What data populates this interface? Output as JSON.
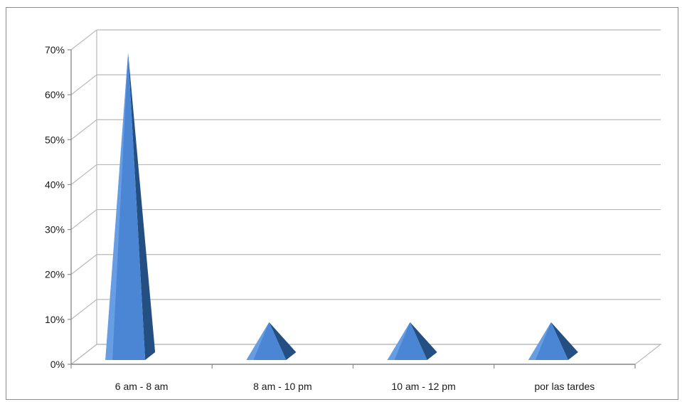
{
  "chart_data": {
    "type": "bar",
    "bar_shape": "pyramid",
    "three_d": true,
    "categories": [
      "6 am - 8 am",
      "8 am - 10 pm",
      "10 am - 12 pm",
      "por las tardes"
    ],
    "values": [
      70,
      10,
      10,
      10
    ],
    "value_format": "percent",
    "ylim": [
      0,
      70
    ],
    "y_ticks": [
      "0%",
      "10%",
      "20%",
      "30%",
      "40%",
      "50%",
      "60%",
      "70%"
    ],
    "grid": true,
    "legend": "none",
    "colors": {
      "bar_front": "#4a86d4",
      "bar_side": "#234f82",
      "bar_highlight": "#7fb0ee",
      "grid": "#b8b8b8",
      "axis": "#8c8c8c"
    }
  }
}
